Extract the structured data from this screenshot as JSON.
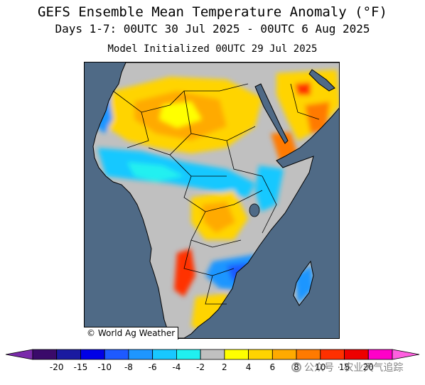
{
  "title": "GEFS Ensemble Mean Temperature Anomaly (°F)",
  "subtitle": "Days 1-7: 00UTC 30 Jul 2025 - 00UTC 6 Aug 2025",
  "init_line": "Model Initialized 00UTC 29 Jul 2025",
  "credit": "© World Ag Weather",
  "watermark": "公众号 · 农业天气追踪",
  "region": "Africa and Arabian Peninsula",
  "colors": {
    "ocean": "#4f6a86",
    "gray_neutral": "#c0c0c0",
    "borders": "#000000"
  },
  "colorbar": {
    "tick_labels": [
      "-20",
      "-15",
      "-10",
      "-8",
      "-6",
      "-4",
      "-2",
      "2",
      "4",
      "6",
      "8",
      "10",
      "15",
      "20"
    ],
    "bins": [
      {
        "color": "#3a0a6a"
      },
      {
        "color": "#1a1aa0"
      },
      {
        "color": "#0000e6"
      },
      {
        "color": "#1e5aff"
      },
      {
        "color": "#1e96ff"
      },
      {
        "color": "#18c8ff"
      },
      {
        "color": "#20f0f0"
      },
      {
        "color": "#c0c0c0"
      },
      {
        "color": "#ffff00"
      },
      {
        "color": "#ffd400"
      },
      {
        "color": "#ffaa00"
      },
      {
        "color": "#ff7a00"
      },
      {
        "color": "#ff3000"
      },
      {
        "color": "#ee0000"
      },
      {
        "color": "#ff00c8"
      }
    ],
    "extend_low_color": "#7a2aaa",
    "extend_high_color": "#ff60e0"
  }
}
